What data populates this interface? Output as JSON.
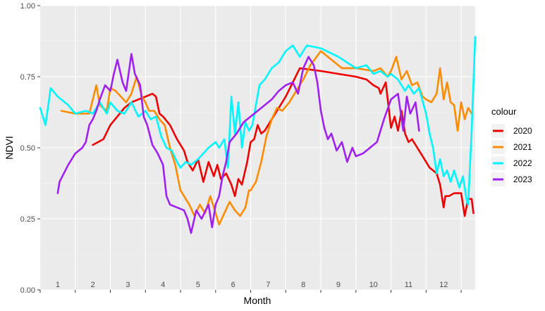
{
  "chart_data": {
    "type": "line",
    "xlabel": "Month",
    "ylabel": "NDVI",
    "ylim": [
      0,
      1
    ],
    "yticks": [
      0.0,
      0.25,
      0.5,
      0.75,
      1.0
    ],
    "ytick_labels": [
      "0.00",
      "0.25",
      "0.50",
      "0.75",
      "1.00"
    ],
    "month_labels": [
      "1",
      "2",
      "3",
      "4",
      "5",
      "6",
      "7",
      "8",
      "9",
      "10",
      "11",
      "12"
    ],
    "grid": true,
    "legend_title": "colour",
    "legend_position": "right",
    "series": [
      {
        "name": "2020",
        "color": "#ee0000",
        "points": [
          [
            1.5,
            0.51
          ],
          [
            1.8,
            0.53
          ],
          [
            2.0,
            0.58
          ],
          [
            2.2,
            0.61
          ],
          [
            2.4,
            0.64
          ],
          [
            2.6,
            0.66
          ],
          [
            2.8,
            0.67
          ],
          [
            3.0,
            0.68
          ],
          [
            3.2,
            0.69
          ],
          [
            3.3,
            0.68
          ],
          [
            3.4,
            0.62
          ],
          [
            3.5,
            0.61
          ],
          [
            3.7,
            0.58
          ],
          [
            3.9,
            0.53
          ],
          [
            4.1,
            0.49
          ],
          [
            4.2,
            0.45
          ],
          [
            4.35,
            0.42
          ],
          [
            4.5,
            0.46
          ],
          [
            4.65,
            0.38
          ],
          [
            4.8,
            0.45
          ],
          [
            4.95,
            0.4
          ],
          [
            5.05,
            0.44
          ],
          [
            5.15,
            0.39
          ],
          [
            5.3,
            0.41
          ],
          [
            5.45,
            0.37
          ],
          [
            5.55,
            0.33
          ],
          [
            5.65,
            0.39
          ],
          [
            5.75,
            0.37
          ],
          [
            5.9,
            0.45
          ],
          [
            6.0,
            0.52
          ],
          [
            6.1,
            0.53
          ],
          [
            6.2,
            0.58
          ],
          [
            6.3,
            0.55
          ],
          [
            6.4,
            0.56
          ],
          [
            6.6,
            0.6
          ],
          [
            6.8,
            0.64
          ],
          [
            7.0,
            0.68
          ],
          [
            7.2,
            0.73
          ],
          [
            7.4,
            0.78
          ],
          [
            8.0,
            0.77
          ],
          [
            8.5,
            0.76
          ],
          [
            9.0,
            0.75
          ],
          [
            9.3,
            0.74
          ],
          [
            9.5,
            0.72
          ],
          [
            9.65,
            0.71
          ],
          [
            9.7,
            0.69
          ],
          [
            9.85,
            0.73
          ],
          [
            10.0,
            0.57
          ],
          [
            10.1,
            0.61
          ],
          [
            10.2,
            0.56
          ],
          [
            10.3,
            0.63
          ],
          [
            10.4,
            0.55
          ],
          [
            10.5,
            0.52
          ],
          [
            10.6,
            0.53
          ],
          [
            10.75,
            0.5
          ],
          [
            10.9,
            0.47
          ],
          [
            11.1,
            0.43
          ],
          [
            11.3,
            0.41
          ],
          [
            11.4,
            0.37
          ],
          [
            11.5,
            0.29
          ],
          [
            11.55,
            0.33
          ],
          [
            11.65,
            0.33
          ],
          [
            11.8,
            0.34
          ],
          [
            12.0,
            0.34
          ],
          [
            12.1,
            0.26
          ],
          [
            12.2,
            0.32
          ],
          [
            12.3,
            0.32
          ],
          [
            12.35,
            0.27
          ]
        ]
      },
      {
        "name": "2021",
        "color": "#ff8c00",
        "points": [
          [
            0.6,
            0.63
          ],
          [
            1.0,
            0.62
          ],
          [
            1.4,
            0.62
          ],
          [
            1.6,
            0.72
          ],
          [
            1.7,
            0.65
          ],
          [
            1.9,
            0.63
          ],
          [
            2.0,
            0.71
          ],
          [
            2.15,
            0.7
          ],
          [
            2.3,
            0.68
          ],
          [
            2.45,
            0.66
          ],
          [
            2.6,
            0.69
          ],
          [
            2.75,
            0.75
          ],
          [
            2.9,
            0.68
          ],
          [
            3.0,
            0.66
          ],
          [
            3.1,
            0.63
          ],
          [
            3.25,
            0.63
          ],
          [
            3.4,
            0.6
          ],
          [
            3.55,
            0.58
          ],
          [
            3.7,
            0.5
          ],
          [
            3.85,
            0.44
          ],
          [
            4.0,
            0.35
          ],
          [
            4.1,
            0.33
          ],
          [
            4.25,
            0.3
          ],
          [
            4.4,
            0.26
          ],
          [
            4.55,
            0.3
          ],
          [
            4.7,
            0.27
          ],
          [
            4.85,
            0.33
          ],
          [
            5.0,
            0.27
          ],
          [
            5.1,
            0.23
          ],
          [
            5.25,
            0.27
          ],
          [
            5.4,
            0.31
          ],
          [
            5.55,
            0.28
          ],
          [
            5.7,
            0.26
          ],
          [
            5.85,
            0.29
          ],
          [
            5.95,
            0.35
          ],
          [
            6.0,
            0.35
          ],
          [
            6.15,
            0.38
          ],
          [
            6.3,
            0.45
          ],
          [
            6.45,
            0.54
          ],
          [
            6.6,
            0.6
          ],
          [
            6.75,
            0.64
          ],
          [
            6.9,
            0.63
          ],
          [
            7.1,
            0.66
          ],
          [
            7.3,
            0.7
          ],
          [
            7.5,
            0.74
          ],
          [
            7.7,
            0.79
          ],
          [
            8.0,
            0.84
          ],
          [
            8.3,
            0.81
          ],
          [
            8.6,
            0.78
          ],
          [
            9.0,
            0.78
          ],
          [
            9.5,
            0.77
          ],
          [
            9.7,
            0.78
          ],
          [
            9.9,
            0.75
          ],
          [
            10.0,
            0.77
          ],
          [
            10.15,
            0.82
          ],
          [
            10.3,
            0.74
          ],
          [
            10.45,
            0.77
          ],
          [
            10.6,
            0.72
          ],
          [
            10.75,
            0.73
          ],
          [
            10.9,
            0.68
          ],
          [
            11.0,
            0.67
          ],
          [
            11.15,
            0.66
          ],
          [
            11.3,
            0.69
          ],
          [
            11.4,
            0.78
          ],
          [
            11.5,
            0.67
          ],
          [
            11.6,
            0.73
          ],
          [
            11.7,
            0.66
          ],
          [
            11.8,
            0.65
          ],
          [
            11.9,
            0.56
          ],
          [
            12.0,
            0.66
          ],
          [
            12.1,
            0.6
          ],
          [
            12.2,
            0.64
          ],
          [
            12.3,
            0.62
          ]
        ]
      },
      {
        "name": "2022",
        "color": "#00f5ff",
        "points": [
          [
            0.0,
            0.64
          ],
          [
            0.15,
            0.58
          ],
          [
            0.3,
            0.71
          ],
          [
            0.5,
            0.68
          ],
          [
            0.8,
            0.65
          ],
          [
            1.0,
            0.62
          ],
          [
            1.3,
            0.63
          ],
          [
            1.5,
            0.62
          ],
          [
            1.7,
            0.66
          ],
          [
            1.9,
            0.62
          ],
          [
            2.0,
            0.66
          ],
          [
            2.2,
            0.63
          ],
          [
            2.4,
            0.62
          ],
          [
            2.6,
            0.66
          ],
          [
            2.8,
            0.61
          ],
          [
            3.0,
            0.63
          ],
          [
            3.15,
            0.6
          ],
          [
            3.3,
            0.61
          ],
          [
            3.45,
            0.54
          ],
          [
            3.6,
            0.5
          ],
          [
            3.75,
            0.49
          ],
          [
            3.9,
            0.45
          ],
          [
            4.0,
            0.43
          ],
          [
            4.15,
            0.45
          ],
          [
            4.3,
            0.44
          ],
          [
            4.5,
            0.46
          ],
          [
            4.65,
            0.48
          ],
          [
            4.8,
            0.5
          ],
          [
            5.0,
            0.52
          ],
          [
            5.1,
            0.5
          ],
          [
            5.25,
            0.53
          ],
          [
            5.35,
            0.43
          ],
          [
            5.45,
            0.68
          ],
          [
            5.55,
            0.55
          ],
          [
            5.65,
            0.66
          ],
          [
            5.75,
            0.5
          ],
          [
            5.85,
            0.59
          ],
          [
            5.95,
            0.56
          ],
          [
            6.05,
            0.58
          ],
          [
            6.15,
            0.65
          ],
          [
            6.25,
            0.72
          ],
          [
            6.4,
            0.74
          ],
          [
            6.6,
            0.78
          ],
          [
            6.8,
            0.8
          ],
          [
            7.0,
            0.84
          ],
          [
            7.2,
            0.86
          ],
          [
            7.4,
            0.82
          ],
          [
            7.6,
            0.86
          ],
          [
            8.0,
            0.85
          ],
          [
            8.5,
            0.82
          ],
          [
            9.0,
            0.78
          ],
          [
            9.3,
            0.79
          ],
          [
            9.5,
            0.76
          ],
          [
            9.7,
            0.77
          ],
          [
            9.9,
            0.75
          ],
          [
            10.0,
            0.76
          ],
          [
            10.2,
            0.74
          ],
          [
            10.4,
            0.7
          ],
          [
            10.5,
            0.72
          ],
          [
            10.65,
            0.69
          ],
          [
            10.8,
            0.71
          ],
          [
            11.0,
            0.62
          ],
          [
            11.1,
            0.55
          ],
          [
            11.2,
            0.5
          ],
          [
            11.3,
            0.41
          ],
          [
            11.4,
            0.46
          ],
          [
            11.5,
            0.4
          ],
          [
            11.6,
            0.42
          ],
          [
            11.7,
            0.38
          ],
          [
            11.8,
            0.42
          ],
          [
            11.95,
            0.36
          ],
          [
            12.05,
            0.4
          ],
          [
            12.15,
            0.32
          ],
          [
            12.2,
            0.3
          ],
          [
            12.3,
            0.56
          ],
          [
            12.4,
            0.89
          ]
        ]
      },
      {
        "name": "2023",
        "color": "#a020f0",
        "points": [
          [
            0.5,
            0.34
          ],
          [
            0.55,
            0.38
          ],
          [
            0.8,
            0.44
          ],
          [
            1.0,
            0.48
          ],
          [
            1.2,
            0.5
          ],
          [
            1.3,
            0.52
          ],
          [
            1.4,
            0.58
          ],
          [
            1.5,
            0.6
          ],
          [
            1.6,
            0.63
          ],
          [
            1.7,
            0.67
          ],
          [
            1.85,
            0.72
          ],
          [
            2.0,
            0.7
          ],
          [
            2.1,
            0.76
          ],
          [
            2.2,
            0.81
          ],
          [
            2.35,
            0.73
          ],
          [
            2.45,
            0.7
          ],
          [
            2.6,
            0.83
          ],
          [
            2.7,
            0.76
          ],
          [
            2.85,
            0.72
          ],
          [
            2.95,
            0.61
          ],
          [
            3.05,
            0.58
          ],
          [
            3.2,
            0.51
          ],
          [
            3.35,
            0.48
          ],
          [
            3.5,
            0.44
          ],
          [
            3.6,
            0.33
          ],
          [
            3.7,
            0.3
          ],
          [
            3.9,
            0.29
          ],
          [
            4.1,
            0.28
          ],
          [
            4.2,
            0.25
          ],
          [
            4.3,
            0.2
          ],
          [
            4.45,
            0.28
          ],
          [
            4.6,
            0.25
          ],
          [
            4.8,
            0.3
          ],
          [
            4.9,
            0.22
          ],
          [
            5.0,
            0.3
          ],
          [
            5.1,
            0.33
          ],
          [
            5.2,
            0.4
          ],
          [
            5.3,
            0.45
          ],
          [
            5.4,
            0.52
          ],
          [
            5.6,
            0.55
          ],
          [
            5.8,
            0.59
          ],
          [
            6.0,
            0.61
          ],
          [
            6.2,
            0.63
          ],
          [
            6.4,
            0.65
          ],
          [
            6.6,
            0.67
          ],
          [
            6.8,
            0.7
          ],
          [
            7.0,
            0.72
          ],
          [
            7.2,
            0.73
          ],
          [
            7.35,
            0.69
          ],
          [
            7.5,
            0.78
          ],
          [
            7.65,
            0.82
          ],
          [
            7.8,
            0.79
          ],
          [
            7.9,
            0.73
          ],
          [
            8.0,
            0.63
          ],
          [
            8.1,
            0.57
          ],
          [
            8.2,
            0.53
          ],
          [
            8.3,
            0.55
          ],
          [
            8.45,
            0.49
          ],
          [
            8.6,
            0.52
          ],
          [
            8.75,
            0.45
          ],
          [
            8.9,
            0.5
          ],
          [
            9.0,
            0.47
          ],
          [
            9.2,
            0.48
          ],
          [
            9.4,
            0.5
          ],
          [
            9.6,
            0.52
          ],
          [
            9.8,
            0.6
          ],
          [
            10.0,
            0.67
          ],
          [
            10.2,
            0.69
          ],
          [
            10.35,
            0.56
          ],
          [
            10.45,
            0.68
          ],
          [
            10.55,
            0.62
          ],
          [
            10.7,
            0.66
          ],
          [
            10.8,
            0.56
          ]
        ]
      }
    ]
  }
}
